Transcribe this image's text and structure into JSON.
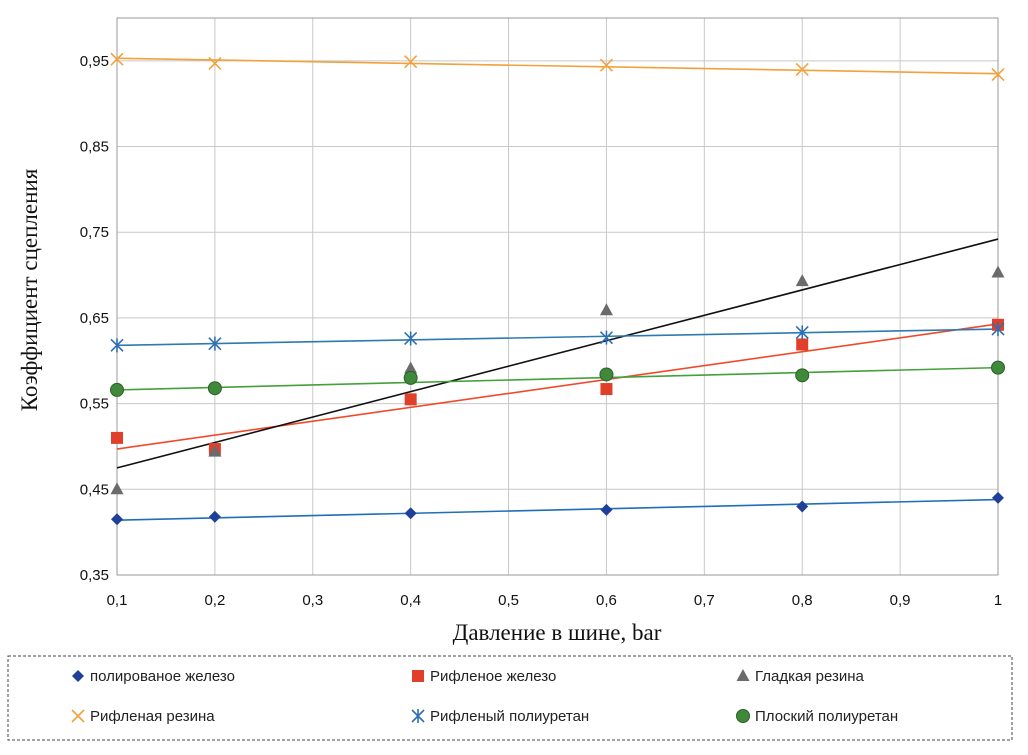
{
  "chart_data": {
    "type": "scatter",
    "xlabel": "Давление в шине, bar",
    "ylabel": "Коэффициент сцепления",
    "xlim": [
      0.1,
      1.0
    ],
    "ylim": [
      0.35,
      1.0
    ],
    "x_ticks": [
      "0,1",
      "0,2",
      "0,3",
      "0,4",
      "0,5",
      "0,6",
      "0,7",
      "0,8",
      "0,9",
      "1"
    ],
    "x_tick_values": [
      0.1,
      0.2,
      0.3,
      0.4,
      0.5,
      0.6,
      0.7,
      0.8,
      0.9,
      1.0
    ],
    "y_ticks": [
      "0,35",
      "0,45",
      "0,55",
      "0,65",
      "0,75",
      "0,85",
      "0,95"
    ],
    "y_tick_values": [
      0.35,
      0.45,
      0.55,
      0.65,
      0.75,
      0.85,
      0.95
    ],
    "grid": true,
    "legend_position": "bottom",
    "series": [
      {
        "name": "полированое железо",
        "color": "#1f3f99",
        "marker": "diamond",
        "x": [
          0.1,
          0.2,
          0.4,
          0.6,
          0.8,
          1.0
        ],
        "y": [
          0.415,
          0.418,
          0.422,
          0.426,
          0.43,
          0.44
        ],
        "trend": [
          0.414,
          0.438
        ],
        "trend_color": "#1f6fb8"
      },
      {
        "name": "Рифленое железо",
        "color": "#e0402a",
        "marker": "square",
        "x": [
          0.1,
          0.2,
          0.4,
          0.6,
          0.8,
          1.0
        ],
        "y": [
          0.51,
          0.497,
          0.555,
          0.567,
          0.619,
          0.642
        ],
        "trend": [
          0.497,
          0.643
        ],
        "trend_color": "#f04a2a"
      },
      {
        "name": "Гладкая резина",
        "color": "#6b6b6b",
        "marker": "triangle",
        "x": [
          0.1,
          0.2,
          0.4,
          0.6,
          0.8,
          1.0
        ],
        "y": [
          0.45,
          0.494,
          0.591,
          0.659,
          0.693,
          0.703
        ],
        "trend": [
          0.475,
          0.742
        ],
        "trend_color": "#111111"
      },
      {
        "name": "Рифленая резина",
        "color": "#f2a23a",
        "marker": "x",
        "x": [
          0.1,
          0.2,
          0.4,
          0.6,
          0.8,
          1.0
        ],
        "y": [
          0.952,
          0.947,
          0.949,
          0.945,
          0.94,
          0.934
        ],
        "trend": [
          0.953,
          0.935
        ],
        "trend_color": "#f2a23a"
      },
      {
        "name": "Рифленый полиуретан",
        "color": "#2e6fb4",
        "marker": "star",
        "x": [
          0.1,
          0.2,
          0.4,
          0.6,
          0.8,
          1.0
        ],
        "y": [
          0.618,
          0.62,
          0.626,
          0.627,
          0.633,
          0.637
        ],
        "trend": [
          0.618,
          0.637
        ],
        "trend_color": "#2e7ab0"
      },
      {
        "name": "Плоский полиуретан",
        "color": "#3f8a3a",
        "marker": "circle",
        "x": [
          0.1,
          0.2,
          0.4,
          0.6,
          0.8,
          1.0
        ],
        "y": [
          0.566,
          0.568,
          0.58,
          0.584,
          0.583,
          0.592
        ],
        "trend": [
          0.566,
          0.592
        ],
        "trend_color": "#45a03a"
      }
    ]
  }
}
